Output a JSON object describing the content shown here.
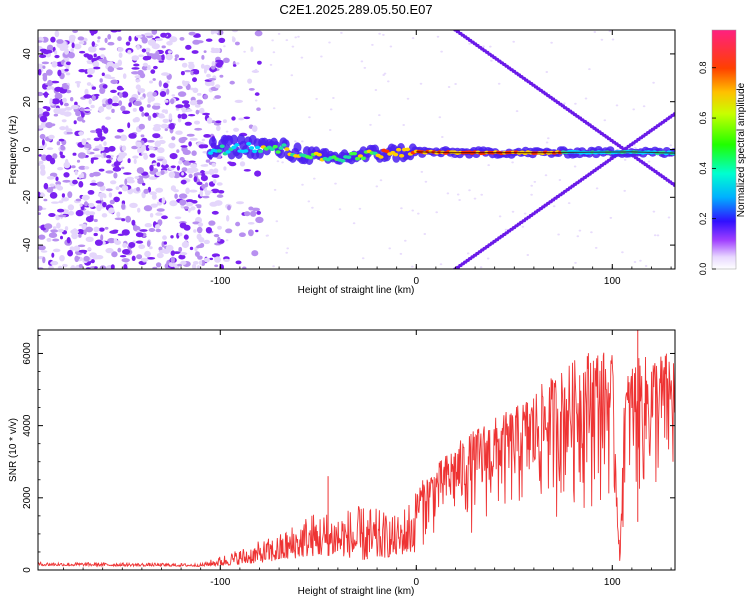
{
  "title": "C2E1.2025.289.05.50.E07",
  "colors": {
    "snr_line": "#ee3333",
    "axis": "#000000",
    "background": "#ffffff"
  },
  "chart_data": [
    {
      "type": "heatmap",
      "name": "spectrogram",
      "xlabel": "Height of straight line (km)",
      "ylabel": "Frequency (Hz)",
      "xlim": [
        -193,
        132
      ],
      "ylim": [
        -50,
        50
      ],
      "x_ticks": [
        -100,
        0,
        100
      ],
      "x_tick_labels": [
        "-100",
        "0",
        "100"
      ],
      "y_ticks": [
        -40,
        -20,
        0,
        20,
        40
      ],
      "y_tick_labels": [
        "-40",
        "-20",
        "0",
        "20",
        "40"
      ],
      "colorbar": {
        "label": "Normalized spectral amplitude",
        "range": [
          0,
          0.95
        ],
        "ticks": [
          0.0,
          0.2,
          0.4,
          0.6,
          0.8
        ],
        "tick_labels": [
          "0.0",
          "0.2",
          "0.4",
          "0.6",
          "0.8"
        ]
      },
      "features": {
        "noise_region_x": [
          -193,
          -100
        ],
        "central_band_path": [
          [
            -105,
            0
          ],
          [
            -90,
            1.5
          ],
          [
            -75,
            1
          ],
          [
            -60,
            -1.5
          ],
          [
            -45,
            -4
          ],
          [
            -30,
            -2.5
          ],
          [
            -15,
            -1.5
          ],
          [
            0,
            -1
          ],
          [
            20,
            -1.3
          ],
          [
            70,
            -1.3
          ],
          [
            80,
            -1.2
          ],
          [
            110,
            -1
          ],
          [
            132,
            -1.5
          ]
        ],
        "crossing_lines": [
          {
            "from": [
              20,
              -50
            ],
            "to": [
              132,
              15
            ]
          },
          {
            "from": [
              20,
              50
            ],
            "to": [
              132,
              -15
            ]
          }
        ]
      }
    },
    {
      "type": "line",
      "name": "snr",
      "xlabel": "Height of straight line (km)",
      "ylabel": "SNR (10 * v/v)",
      "xlim": [
        -193,
        132
      ],
      "ylim": [
        0,
        6650
      ],
      "x_ticks": [
        -100,
        0,
        100
      ],
      "x_tick_labels": [
        "-100",
        "0",
        "100"
      ],
      "y_ticks": [
        0,
        2000,
        4000,
        6000
      ],
      "y_tick_labels": [
        "0",
        "2000",
        "4000",
        "6000"
      ],
      "envelope": {
        "x": [
          -193,
          -150,
          -110,
          -90,
          -70,
          -55,
          -40,
          -25,
          -10,
          0,
          10,
          20,
          35,
          50,
          65,
          80,
          90,
          100,
          104,
          106,
          110,
          120,
          132
        ],
        "base": [
          120,
          110,
          100,
          150,
          250,
          380,
          400,
          250,
          400,
          500,
          700,
          800,
          900,
          1000,
          1100,
          1250,
          1350,
          1400,
          50,
          1300,
          1350,
          1300,
          1300
        ],
        "peak": [
          220,
          200,
          180,
          600,
          1000,
          1600,
          1700,
          1800,
          1500,
          2300,
          2900,
          3500,
          4100,
          4500,
          5200,
          5800,
          6200,
          6000,
          300,
          5200,
          5800,
          6000,
          6100
        ]
      },
      "spikes": [
        {
          "x": -45,
          "y": 2600
        },
        {
          "x": 113,
          "y": 6650
        }
      ]
    }
  ]
}
